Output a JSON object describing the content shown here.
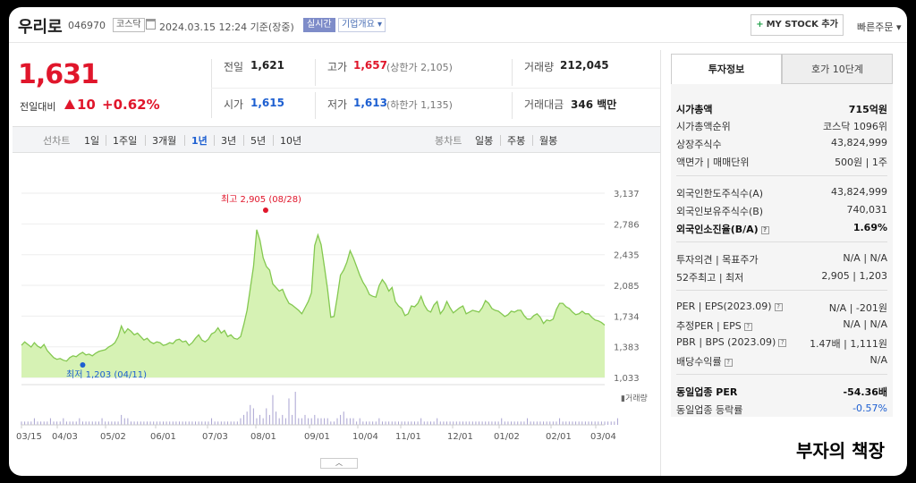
{
  "header": {
    "company": "우리로",
    "code": "046970",
    "market": "코스닥",
    "datetime": "2024.03.15 12:24 기준(장중)",
    "live_tag": "실시간",
    "overview_tag": "기업개요 ▾",
    "mystock_label": "MY STOCK 추가",
    "quick_order": "빠른주문 ▾"
  },
  "price": {
    "current": "1,631",
    "compare_label": "전일대비",
    "change": "10",
    "change_pct": "+0.62%"
  },
  "quote": {
    "prev_close_label": "전일",
    "prev_close": "1,621",
    "high_label": "고가",
    "high": "1,657",
    "upper_limit": "(상한가 2,105)",
    "volume_label": "거래량",
    "volume": "212,045",
    "open_label": "시가",
    "open": "1,615",
    "low_label": "저가",
    "low": "1,613",
    "lower_limit": "(하한가 1,135)",
    "amount_label": "거래대금",
    "amount": "346 백만"
  },
  "periods": {
    "line_label": "선차트",
    "items": [
      "1일",
      "1주일",
      "3개월",
      "1년",
      "3년",
      "5년",
      "10년"
    ],
    "active": "1년",
    "candle_label": "봉차트",
    "candle_items": [
      "일봉",
      "주봉",
      "월봉"
    ]
  },
  "chart_data": {
    "type": "area",
    "yticks": [
      3137,
      2786,
      2435,
      2085,
      1734,
      1383,
      1033
    ],
    "ylim": [
      1033,
      3137
    ],
    "xticks": [
      "03/15",
      "04/03",
      "05/02",
      "06/01",
      "07/03",
      "08/01",
      "09/01",
      "10/04",
      "11/01",
      "12/01",
      "01/02",
      "02/01",
      "03/04"
    ],
    "max_label": "최고 2,905 (08/28)",
    "min_label": "최저 1,203 (04/11)",
    "volume_label": "▮거래량",
    "series": [
      {
        "values": [
          1400,
          1440,
          1410,
          1380,
          1430,
          1390,
          1370,
          1410,
          1340,
          1300,
          1260,
          1240,
          1250,
          1230,
          1220,
          1260,
          1280,
          1270,
          1300,
          1320,
          1290,
          1300,
          1280,
          1310,
          1330,
          1340,
          1350,
          1380,
          1400,
          1430,
          1500,
          1620,
          1540,
          1590,
          1560,
          1520,
          1540,
          1500,
          1460,
          1480,
          1440,
          1420,
          1440,
          1430,
          1400,
          1410,
          1430,
          1420,
          1460,
          1470,
          1440,
          1450,
          1400,
          1430,
          1480,
          1520,
          1460,
          1440,
          1470,
          1530,
          1550,
          1600,
          1540,
          1570,
          1500,
          1520,
          1480,
          1470,
          1500,
          1640,
          1800,
          2050,
          2300,
          2720,
          2600,
          2400,
          2300,
          2260,
          2100,
          2060,
          2020,
          2040,
          1950,
          1880,
          1860,
          1830,
          1800,
          1760,
          1830,
          1900,
          2000,
          2540,
          2660,
          2550,
          2300,
          2040,
          1720,
          1730,
          1950,
          2200,
          2260,
          2350,
          2480,
          2400,
          2300,
          2200,
          2120,
          2060,
          1980,
          1960,
          1950,
          2080,
          2150,
          2100,
          2020,
          2060,
          1900,
          1850,
          1820,
          1740,
          1760,
          1850,
          1840,
          1880,
          1960,
          1860,
          1800,
          1780,
          1860,
          1900,
          1760,
          1810,
          1900,
          1830,
          1770,
          1800,
          1830,
          1850,
          1760,
          1780,
          1800,
          1790,
          1780,
          1830,
          1910,
          1880,
          1820,
          1800,
          1790,
          1760,
          1730,
          1750,
          1790,
          1780,
          1800,
          1800,
          1740,
          1700,
          1700,
          1740,
          1760,
          1720,
          1650,
          1690,
          1680,
          1700,
          1810,
          1880,
          1880,
          1840,
          1820,
          1780,
          1750,
          1760,
          1790,
          1760,
          1760,
          1720,
          1690,
          1680,
          1660,
          1631
        ]
      }
    ],
    "volume": [
      1,
      1,
      1,
      1,
      2,
      1,
      1,
      1,
      1,
      2,
      1,
      1,
      1,
      2,
      1,
      1,
      1,
      1,
      2,
      1,
      1,
      1,
      1,
      1,
      1,
      2,
      1,
      1,
      1,
      1,
      1,
      3,
      2,
      2,
      1,
      1,
      1,
      1,
      1,
      1,
      1,
      1,
      1,
      1,
      1,
      1,
      1,
      1,
      1,
      1,
      1,
      1,
      1,
      1,
      1,
      1,
      1,
      1,
      1,
      2,
      1,
      1,
      1,
      1,
      1,
      1,
      1,
      1,
      2,
      3,
      4,
      6,
      5,
      2,
      3,
      2,
      5,
      3,
      9,
      4,
      2,
      3,
      2,
      8,
      3,
      10,
      2,
      2,
      3,
      2,
      2,
      3,
      2,
      2,
      2,
      2,
      1,
      1,
      2,
      3,
      4,
      2,
      2,
      2,
      1,
      2,
      1,
      1,
      1,
      1,
      1,
      2,
      1,
      1,
      1,
      1,
      1,
      1,
      1,
      1,
      1,
      1,
      1,
      1,
      2,
      1,
      1,
      1,
      1,
      2,
      1,
      1,
      1,
      1,
      1,
      1,
      1,
      1,
      1,
      1,
      1,
      1,
      1,
      1,
      1,
      1,
      1,
      1,
      1,
      2,
      1,
      1,
      1,
      1,
      1,
      1,
      1,
      2,
      1,
      1,
      1,
      1,
      1,
      1,
      1,
      1,
      1,
      2,
      1,
      1,
      1,
      1,
      1,
      1,
      1,
      1,
      1,
      1,
      1,
      1,
      1,
      1,
      1,
      1,
      1,
      2
    ]
  },
  "info": {
    "tab_active": "투자정보",
    "tab_other": "호가 10단계",
    "market_cap_label": "시가총액",
    "market_cap": "715억원",
    "rank_label": "시가총액순위",
    "rank": "코스닥 1096위",
    "shares_label": "상장주식수",
    "shares": "43,824,999",
    "par_label": "액면가 | 매매단위",
    "par": "500원 | 1주",
    "foreign_limit_label": "외국인한도주식수(A)",
    "foreign_limit": "43,824,999",
    "foreign_hold_label": "외국인보유주식수(B)",
    "foreign_hold": "740,031",
    "foreign_ratio_label": "외국인소진율(B/A)",
    "foreign_ratio": "1.69%",
    "opinion_label": "투자의견 | 목표주가",
    "opinion": "N/A | N/A",
    "w52_label": "52주최고 | 최저",
    "w52": "2,905 | 1,203",
    "per_label": "PER | EPS(2023.09)",
    "per": "N/A | -201원",
    "est_per_label": "추정PER | EPS",
    "est_per": "N/A | N/A",
    "pbr_label": "PBR | BPS (2023.09)",
    "pbr": "1.47배 | 1,111원",
    "div_label": "배당수익률",
    "div": "N/A",
    "ind_per_label": "동일업종 PER",
    "ind_per": "-54.36배",
    "ind_rate_label": "동일업종 등락률",
    "ind_rate": "-0.57%"
  },
  "watermark": "부자의 책장",
  "colors": {
    "up": "#e0162b",
    "down": "#1d5fd1",
    "area_fill": "#d6f2b4",
    "line": "#84c850"
  }
}
